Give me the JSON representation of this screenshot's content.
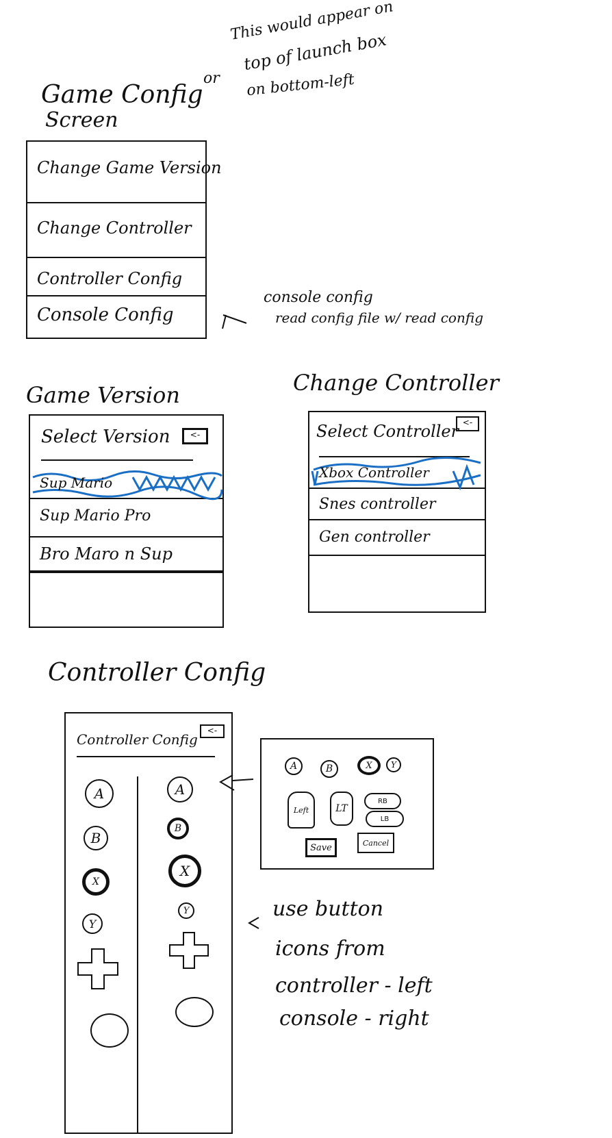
{
  "notes": {
    "top_right": [
      "This would appear on",
      "top of launch box",
      "on bottom-left"
    ],
    "top_or": "or",
    "console_note": [
      "console config",
      "read config file w/ read config"
    ],
    "button_note": [
      "use button",
      "icons from",
      "controller - left",
      "console - right"
    ]
  },
  "game_config": {
    "title": [
      "Game Config",
      "Screen"
    ],
    "items": [
      {
        "label": "Change Game Version"
      },
      {
        "label": "Change Controller"
      },
      {
        "label": "Controller Config"
      },
      {
        "label": "Console Config"
      }
    ]
  },
  "game_version": {
    "title": "Game Version",
    "heading": "Select Version",
    "back": "<-",
    "items": [
      {
        "label": "Sup Mario",
        "selected": true
      },
      {
        "label": "Sup Mario Pro",
        "selected": false
      },
      {
        "label": "Bro Maro n Sup",
        "selected": false
      }
    ]
  },
  "change_controller": {
    "title": "Change Controller",
    "heading": "Select Controller",
    "back": "<-",
    "items": [
      {
        "label": "Xbox Controller",
        "selected": true
      },
      {
        "label": "Snes controller",
        "selected": false
      },
      {
        "label": "Gen controller",
        "selected": false
      }
    ]
  },
  "controller_config": {
    "title": "Controller Config",
    "heading": "Controller Config",
    "back": "<-",
    "left_buttons": [
      "A",
      "B",
      "X",
      "Y"
    ],
    "right_buttons": [
      "A",
      "B",
      "X",
      "Y"
    ]
  },
  "remap_popup": {
    "face_buttons": [
      "A",
      "B",
      "X",
      "Y"
    ],
    "triggers": [
      "Left",
      "LT"
    ],
    "bumpers": [
      "RB",
      "LB"
    ],
    "save_label": "Save",
    "cancel_label": "Cancel"
  },
  "colors": {
    "ink": "#111111",
    "highlight": "#1a6fc4"
  }
}
